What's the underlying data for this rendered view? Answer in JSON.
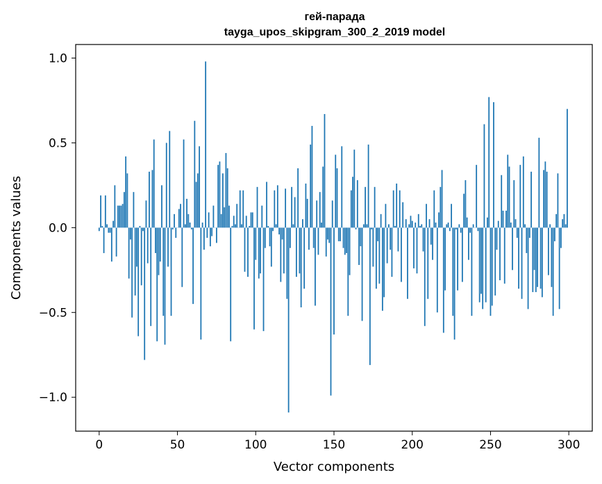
{
  "chart_data": {
    "type": "bar",
    "title_line1": "гей-парада",
    "title_line2": "tayga_upos_skipgram_300_2_2019 model",
    "xlabel": "Vector components",
    "ylabel": "Components values",
    "xlim": [
      -15,
      315
    ],
    "ylim": [
      -1.2,
      1.08
    ],
    "xticks": [
      0,
      50,
      100,
      150,
      200,
      250,
      300
    ],
    "xtick_labels": [
      "0",
      "50",
      "100",
      "150",
      "200",
      "250",
      "300"
    ],
    "yticks": [
      -1.0,
      -0.5,
      0.0,
      0.5,
      1.0
    ],
    "ytick_labels": [
      "−1.0",
      "−0.5",
      "0.0",
      "0.5",
      "1.0"
    ],
    "grid": false,
    "bar_color": "#1f77b4",
    "values": [
      -0.02,
      0.19,
      0.01,
      -0.15,
      0.19,
      0.02,
      -0.03,
      -0.03,
      -0.2,
      0.04,
      0.25,
      -0.17,
      0.13,
      0.13,
      0.13,
      0.14,
      0.21,
      0.42,
      0.32,
      -0.3,
      -0.07,
      -0.53,
      0.21,
      -0.4,
      -0.23,
      -0.64,
      0.01,
      -0.34,
      -0.02,
      -0.78,
      0.16,
      -0.21,
      0.33,
      -0.58,
      0.34,
      0.52,
      -0.15,
      -0.67,
      -0.28,
      -0.2,
      0.25,
      -0.52,
      -0.69,
      0.5,
      -0.23,
      0.57,
      -0.52,
      -0.01,
      0.08,
      -0.06,
      0.0,
      0.11,
      0.14,
      -0.35,
      0.52,
      0.02,
      0.17,
      0.08,
      0.03,
      -0.01,
      -0.45,
      0.63,
      0.27,
      0.32,
      0.48,
      -0.66,
      0.03,
      -0.13,
      0.98,
      -0.06,
      0.09,
      -0.11,
      -0.05,
      0.13,
      0.0,
      -0.09,
      0.37,
      0.39,
      0.08,
      0.32,
      0.12,
      0.44,
      0.35,
      0.13,
      -0.67,
      0.01,
      0.07,
      0.02,
      0.14,
      0.0,
      0.22,
      0.02,
      0.22,
      -0.26,
      0.07,
      -0.29,
      0.01,
      0.09,
      0.09,
      -0.6,
      -0.19,
      0.24,
      -0.3,
      -0.27,
      0.13,
      -0.61,
      -0.12,
      0.27,
      0.01,
      -0.11,
      -0.23,
      -0.02,
      0.22,
      0.02,
      0.25,
      -0.04,
      -0.32,
      -0.07,
      -0.27,
      0.23,
      -0.42,
      -1.09,
      -0.12,
      0.24,
      0.02,
      0.18,
      -0.29,
      0.35,
      -0.27,
      -0.47,
      0.05,
      -0.36,
      0.26,
      0.17,
      -0.13,
      0.49,
      0.6,
      -0.12,
      -0.46,
      0.16,
      -0.16,
      0.21,
      0.03,
      0.36,
      0.67,
      -0.17,
      -0.07,
      -0.09,
      -0.99,
      0.16,
      -0.63,
      0.43,
      0.35,
      -0.08,
      -0.08,
      0.48,
      -0.12,
      -0.16,
      -0.15,
      -0.52,
      -0.28,
      0.22,
      0.3,
      0.46,
      -0.01,
      0.28,
      -0.22,
      -0.11,
      -0.55,
      0.02,
      0.24,
      0.02,
      0.49,
      -0.81,
      -0.01,
      -0.23,
      0.24,
      -0.36,
      -0.08,
      -0.33,
      0.08,
      -0.49,
      -0.41,
      0.14,
      -0.21,
      0.02,
      -0.13,
      -0.29,
      0.22,
      0.01,
      0.26,
      -0.14,
      0.22,
      -0.32,
      0.15,
      0.0,
      0.05,
      -0.42,
      0.02,
      0.07,
      0.04,
      -0.24,
      0.03,
      -0.27,
      0.08,
      0.01,
      0.02,
      -0.14,
      -0.58,
      0.14,
      -0.42,
      0.05,
      -0.1,
      -0.19,
      0.22,
      0.03,
      -0.5,
      0.09,
      0.24,
      0.34,
      -0.62,
      -0.37,
      0.02,
      0.03,
      -0.02,
      0.14,
      -0.52,
      -0.66,
      -0.01,
      -0.37,
      0.02,
      -0.03,
      -0.32,
      0.2,
      0.28,
      0.06,
      -0.19,
      -0.03,
      -0.52,
      0.02,
      0.0,
      0.37,
      -0.02,
      -0.44,
      -0.39,
      -0.48,
      0.61,
      -0.44,
      0.06,
      0.77,
      -0.52,
      -0.46,
      0.74,
      -0.4,
      -0.13,
      0.04,
      -0.31,
      0.31,
      0.1,
      -0.33,
      0.1,
      0.43,
      0.36,
      0.03,
      -0.25,
      0.28,
      0.05,
      -0.06,
      -0.36,
      0.37,
      -0.42,
      0.42,
      0.02,
      -0.15,
      -0.48,
      -0.06,
      0.33,
      -0.38,
      -0.25,
      -0.38,
      -0.35,
      0.53,
      -0.36,
      -0.41,
      0.34,
      0.39,
      0.33,
      -0.28,
      0.02,
      -0.35,
      -0.52,
      -0.08,
      0.08,
      0.32,
      -0.48,
      -0.12,
      0.05,
      0.08,
      0.02,
      0.7
    ]
  }
}
